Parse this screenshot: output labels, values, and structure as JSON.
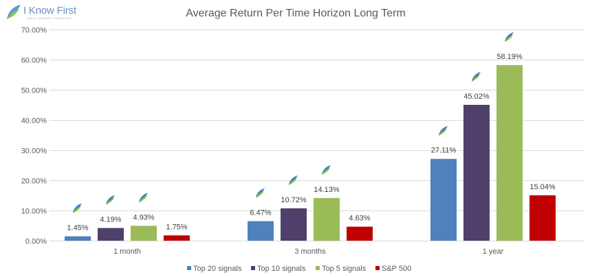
{
  "brand": {
    "name": "I Know First",
    "tagline": "DAILY MARKET FORECAST"
  },
  "colors": {
    "background": "#ffffff",
    "grid": "#d9d9d9",
    "axis_text": "#595959",
    "title": "#595959"
  },
  "chart_data": {
    "type": "bar",
    "title": "Average Return Per Time Horizon Long Term",
    "xlabel": "",
    "ylabel": "",
    "categories": [
      "1 month",
      "3 months",
      "1 year"
    ],
    "ylim": [
      0,
      70
    ],
    "yticks": [
      0,
      10,
      20,
      30,
      40,
      50,
      60,
      70
    ],
    "ytick_labels": [
      "0.00%",
      "10.00%",
      "20.00%",
      "30.00%",
      "40.00%",
      "50.00%",
      "60.00%",
      "70.00%"
    ],
    "grid": true,
    "legend_position": "bottom",
    "series": [
      {
        "name": "Top 20 signals",
        "color": "#4f81bd",
        "values": [
          1.45,
          6.47,
          27.11
        ],
        "labels": [
          "1.45%",
          "6.47%",
          "27.11%"
        ],
        "has_logo": true
      },
      {
        "name": "Top 10 signals",
        "color": "#4e3f6b",
        "values": [
          4.19,
          10.72,
          45.02
        ],
        "labels": [
          "4.19%",
          "10.72%",
          "45.02%"
        ],
        "has_logo": true
      },
      {
        "name": "Top 5 signals",
        "color": "#9bbb59",
        "values": [
          4.93,
          14.13,
          58.19
        ],
        "labels": [
          "4.93%",
          "14.13%",
          "58.19%"
        ],
        "has_logo": true
      },
      {
        "name": "S&P 500",
        "color": "#c00000",
        "values": [
          1.75,
          4.63,
          15.04
        ],
        "labels": [
          "1.75%",
          "4.63%",
          "15.04%"
        ],
        "has_logo": false
      }
    ]
  }
}
